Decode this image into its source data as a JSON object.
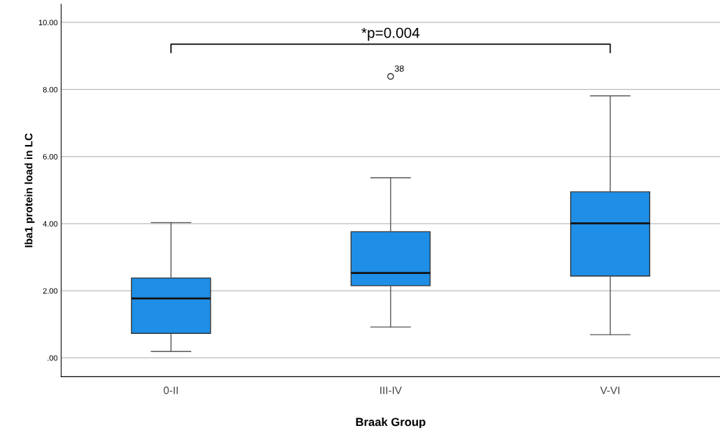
{
  "chart_data": {
    "type": "box",
    "xlabel": "Braak Group",
    "ylabel": "Iba1 protein load in LC",
    "categories": [
      "0-II",
      "III-IV",
      "V-VI"
    ],
    "color": "#1e8ee6",
    "boxes": [
      {
        "low": 0.19,
        "q1": 0.73,
        "median": 1.77,
        "q3": 2.38,
        "high": 4.03
      },
      {
        "low": 0.92,
        "q1": 2.15,
        "median": 2.53,
        "q3": 3.76,
        "high": 5.37,
        "outliers": [
          8.39
        ]
      },
      {
        "low": 0.69,
        "q1": 2.44,
        "median": 4.01,
        "q3": 4.95,
        "high": 7.81
      }
    ],
    "ylim": [
      -0.56,
      10.54
    ],
    "yticks": [
      {
        "value": 0,
        "label": ".00"
      },
      {
        "value": 2,
        "label": "2.00"
      },
      {
        "value": 4,
        "label": "4.00"
      },
      {
        "value": 6,
        "label": "6.00"
      },
      {
        "value": 8,
        "label": "8.00"
      },
      {
        "value": 10,
        "label": "10.00"
      }
    ],
    "grid": "y",
    "annotations": [
      "*p=0.004",
      "38"
    ]
  }
}
